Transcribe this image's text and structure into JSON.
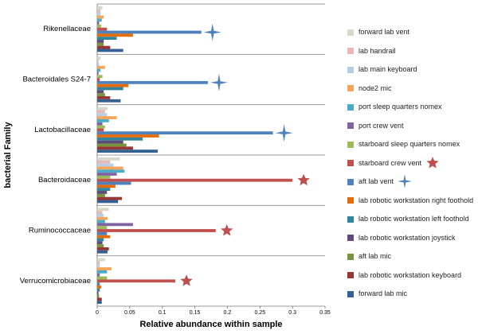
{
  "chart_data": {
    "type": "hbar",
    "y_label": "bacterial Family",
    "x_label": "Relative abundance within sample",
    "categories": [
      "Rikenellaceae",
      "Bacteroidales S24-7",
      "Lactobacillaceae",
      "Bacteroidaceae",
      "Ruminococcaceae",
      "Verrucomicrobiaceae"
    ],
    "xlim": [
      0,
      0.35
    ],
    "xticks": [
      0,
      0.05,
      0.1,
      0.15,
      0.2,
      0.25,
      0.3,
      0.35
    ],
    "series": [
      {
        "name": "forward lab vent",
        "color": "#d8d8c8",
        "values": [
          0.008,
          0.005,
          0.016,
          0.035,
          0.018,
          0.012
        ]
      },
      {
        "name": "lab handrail",
        "color": "#e6b9b8",
        "values": [
          0.005,
          0.002,
          0.012,
          0.02,
          0.008,
          0.004
        ]
      },
      {
        "name": "lab main keyboard",
        "color": "#b9cde5",
        "values": [
          0.005,
          0.003,
          0.015,
          0.025,
          0.01,
          0.004
        ]
      },
      {
        "name": "node2 mic",
        "color": "#f5a55b",
        "values": [
          0.01,
          0.012,
          0.03,
          0.04,
          0.016,
          0.022
        ]
      },
      {
        "name": "port sleep quarters nomex",
        "color": "#4bacc6",
        "values": [
          0.007,
          0.005,
          0.018,
          0.042,
          0.012,
          0.015
        ]
      },
      {
        "name": "port crew vent",
        "color": "#8064a2",
        "values": [
          0.003,
          0.002,
          0.008,
          0.03,
          0.055,
          0.004
        ]
      },
      {
        "name": "starboard sleep quarters nomex",
        "color": "#9bbb59",
        "values": [
          0.006,
          0.008,
          0.012,
          0.02,
          0.015,
          0.015
        ]
      },
      {
        "name": "starboard crew vent",
        "color": "#c0504d",
        "values": [
          0.015,
          0.004,
          0.01,
          0.3,
          0.182,
          0.12
        ]
      },
      {
        "name": "aft lab vent",
        "color": "#4f81bd",
        "values": [
          0.16,
          0.17,
          0.27,
          0.052,
          0.015,
          0.004
        ]
      },
      {
        "name": "lab robotic workstation right foothold",
        "color": "#e46c0a",
        "values": [
          0.055,
          0.048,
          0.095,
          0.028,
          0.02,
          0.006
        ]
      },
      {
        "name": "lab robotic workstation left foothold",
        "color": "#31859c",
        "values": [
          0.03,
          0.04,
          0.07,
          0.02,
          0.01,
          0.004
        ]
      },
      {
        "name": "lab robotic workstation joystick",
        "color": "#604a7b",
        "values": [
          0.01,
          0.01,
          0.04,
          0.015,
          0.008,
          0.002
        ]
      },
      {
        "name": "aft lab mic",
        "color": "#77933c",
        "values": [
          0.01,
          0.012,
          0.045,
          0.012,
          0.01,
          0.003
        ]
      },
      {
        "name": "lab robotic workstation keyboard",
        "color": "#953735",
        "values": [
          0.02,
          0.02,
          0.055,
          0.038,
          0.018,
          0.007
        ]
      },
      {
        "name": "forward lab mic",
        "color": "#376092",
        "values": [
          0.04,
          0.036,
          0.093,
          0.032,
          0.016,
          0.007
        ]
      }
    ]
  }
}
